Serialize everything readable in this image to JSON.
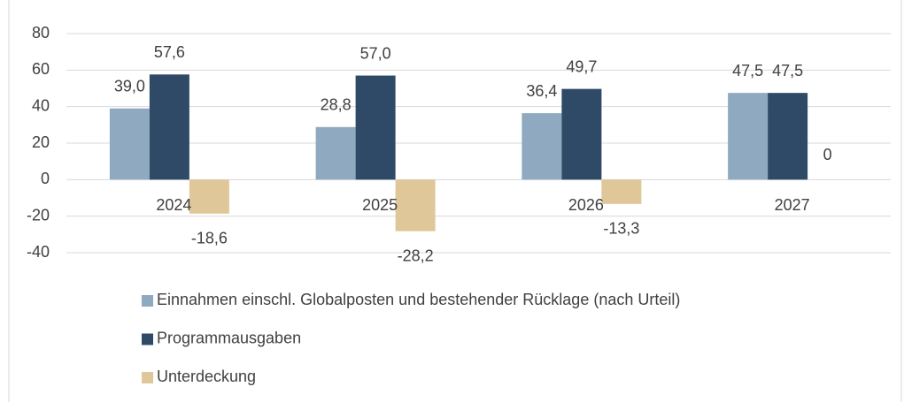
{
  "chart_data": {
    "type": "bar",
    "categories": [
      "2024",
      "2025",
      "2026",
      "2027"
    ],
    "series": [
      {
        "name": "Einnahmen einschl. Globalposten und bestehender Rücklage (nach Urteil)",
        "color": "#8fa9c0",
        "values": [
          39.0,
          28.8,
          36.4,
          47.5
        ],
        "value_labels": [
          "39,0",
          "28,8",
          "36,4",
          "47,5"
        ]
      },
      {
        "name": "Programmausgaben",
        "color": "#2e4a66",
        "values": [
          57.6,
          57.0,
          49.7,
          47.5
        ],
        "value_labels": [
          "57,6",
          "57,0",
          "49,7",
          "47,5"
        ]
      },
      {
        "name": "Unterdeckung",
        "color": "#e0c79a",
        "values": [
          -18.6,
          -28.2,
          -13.3,
          0
        ],
        "value_labels": [
          "-18,6",
          "-28,2",
          "-13,3",
          "0"
        ]
      }
    ],
    "ylim": [
      -40,
      80
    ],
    "yticks": [
      -40,
      -20,
      0,
      20,
      40,
      60,
      80
    ],
    "grid": true,
    "legend": "bottom"
  }
}
